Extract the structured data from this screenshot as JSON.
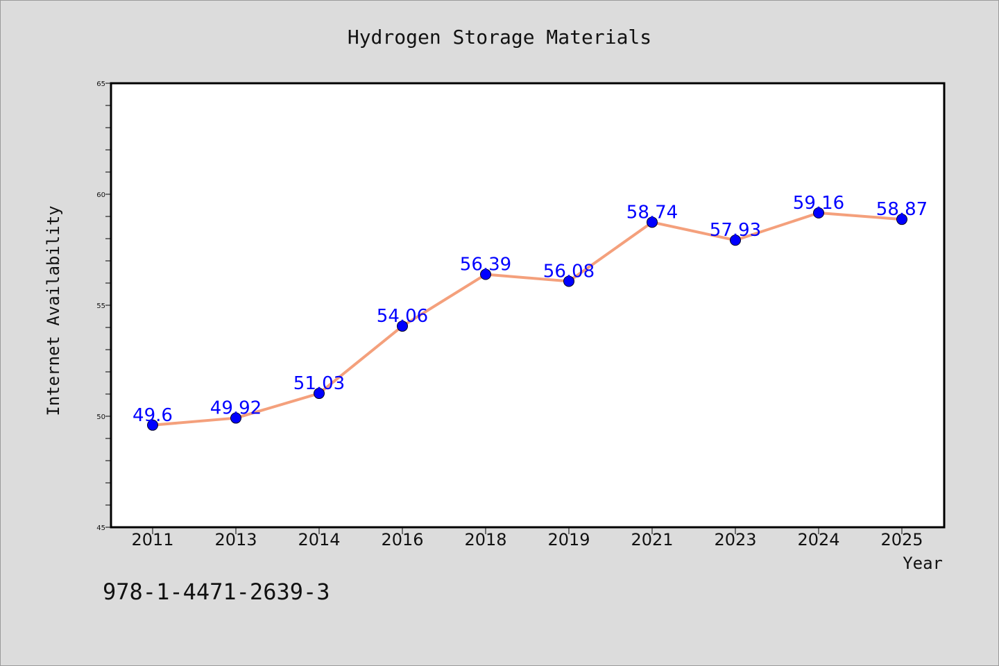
{
  "chart_data": {
    "type": "line",
    "title": "Hydrogen Storage Materials",
    "xlabel": "Year",
    "ylabel": "Internet Availability",
    "categories": [
      "2011",
      "2013",
      "2014",
      "2016",
      "2018",
      "2019",
      "2021",
      "2023",
      "2024",
      "2025"
    ],
    "series": [
      {
        "values": [
          49.6,
          49.92,
          51.03,
          54.06,
          56.39,
          56.08,
          58.74,
          57.93,
          59.16,
          58.87
        ],
        "data_labels": [
          "49.6",
          "49.92",
          "51.03",
          "54.06",
          "56.39",
          "56.08",
          "58.74",
          "57.93",
          "59.16",
          "58.87"
        ]
      }
    ],
    "ylim": [
      45,
      65
    ],
    "yticks": [
      45,
      50,
      55,
      60,
      65
    ],
    "grid": false,
    "colors": {
      "line": "#f4a07c",
      "marker": "#0000ff",
      "label": "#0000ff",
      "plot_bg": "#ffffff",
      "figure_bg": "#dcdcdc"
    }
  },
  "annotation": "978-1-4471-2639-3"
}
